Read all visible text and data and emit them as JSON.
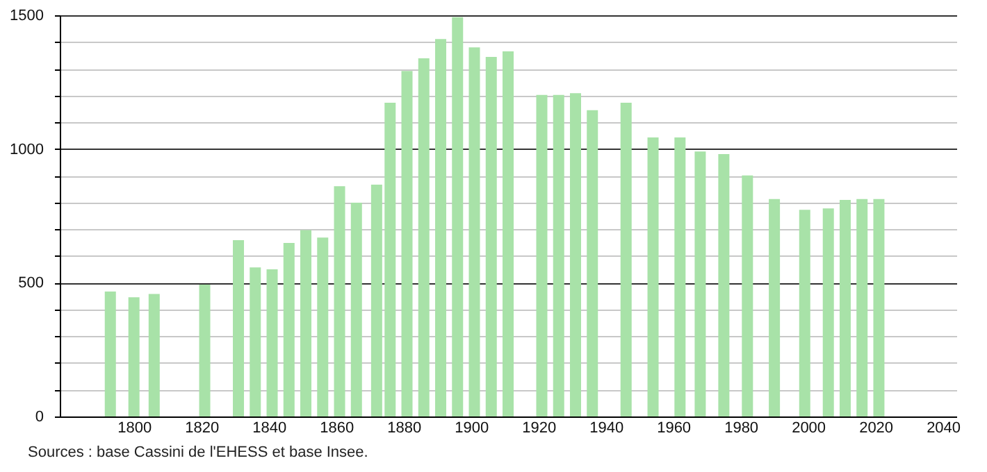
{
  "chart_data": {
    "type": "bar",
    "color": "#a8e2a8",
    "x": [
      1793,
      1800,
      1806,
      1821,
      1831,
      1836,
      1841,
      1846,
      1851,
      1856,
      1861,
      1866,
      1872,
      1876,
      1881,
      1886,
      1891,
      1896,
      1901,
      1906,
      1911,
      1921,
      1926,
      1931,
      1936,
      1946,
      1954,
      1962,
      1968,
      1975,
      1982,
      1990,
      1999,
      2006,
      2011,
      2016,
      2021
    ],
    "values": [
      467,
      446,
      458,
      493,
      659,
      557,
      550,
      649,
      697,
      669,
      861,
      799,
      867,
      1173,
      1292,
      1339,
      1411,
      1493,
      1380,
      1344,
      1365,
      1202,
      1202,
      1209,
      1145,
      1173,
      1043,
      1043,
      991,
      981,
      901,
      813,
      773,
      778,
      810,
      813,
      813
    ],
    "xlim": [
      1778,
      2044
    ],
    "xticks": [
      1800,
      1820,
      1840,
      1860,
      1880,
      1900,
      1920,
      1940,
      1960,
      1980,
      2000,
      2020,
      2040
    ],
    "ylim": [
      0,
      1500
    ],
    "yticks": [
      0,
      {
        "value": 100,
        "label": null
      },
      {
        "value": 200,
        "label": null
      },
      {
        "value": 300,
        "label": null
      },
      {
        "value": 400,
        "label": null
      },
      500,
      {
        "value": 600,
        "label": null
      },
      {
        "value": 700,
        "label": null
      },
      {
        "value": 800,
        "label": null
      },
      {
        "value": 900,
        "label": null
      },
      1000,
      {
        "value": 1100,
        "label": null
      },
      {
        "value": 1200,
        "label": null
      },
      {
        "value": 1300,
        "label": null
      },
      {
        "value": 1400,
        "label": null
      },
      1500
    ],
    "grid": "y",
    "annotations": [
      "Sources : base Cassini de l'EHESS et base Insee."
    ]
  }
}
